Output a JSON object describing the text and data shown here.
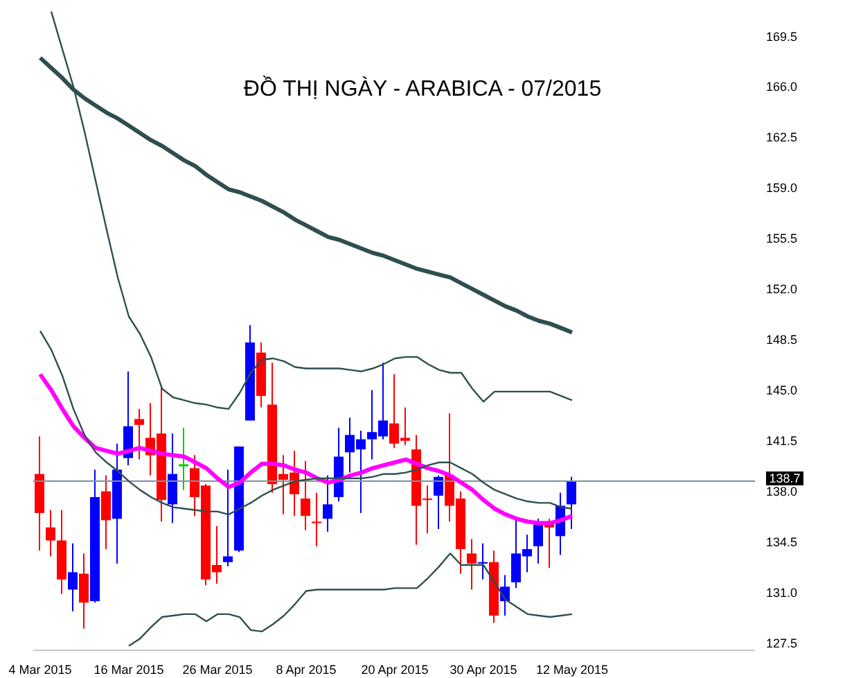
{
  "chart_data": {
    "type": "candlestick",
    "title": "ĐỒ THỊ NGÀY - ARABICA - 07/2015",
    "categories": [
      "4 Mar 2015",
      null,
      null,
      null,
      null,
      null,
      null,
      null,
      "16 Mar 2015",
      null,
      null,
      null,
      null,
      null,
      null,
      null,
      "26 Mar 2015",
      null,
      null,
      null,
      null,
      null,
      null,
      null,
      "8 Apr 2015",
      null,
      null,
      null,
      null,
      null,
      null,
      null,
      "20 Apr 2015",
      null,
      null,
      null,
      null,
      null,
      null,
      null,
      "30 Apr 2015",
      null,
      null,
      null,
      null,
      null,
      null,
      null,
      "12 May 2015"
    ],
    "ohlc": [
      [
        139.2,
        141.8,
        133.9,
        136.5
      ],
      [
        135.5,
        136.7,
        133.5,
        134.6
      ],
      [
        134.6,
        136.7,
        130.9,
        131.9
      ],
      [
        131.2,
        134.4,
        129.7,
        132.4
      ],
      [
        132.3,
        133.7,
        128.5,
        130.3
      ],
      [
        130.4,
        139.5,
        130.3,
        137.6
      ],
      [
        138.0,
        139.1,
        134.0,
        136.0
      ],
      [
        136.1,
        141.3,
        133.0,
        139.5
      ],
      [
        140.3,
        146.3,
        139.8,
        142.5
      ],
      [
        143.0,
        143.7,
        140.2,
        142.6
      ],
      [
        141.7,
        144.1,
        139.1,
        140.5
      ],
      [
        142.0,
        145.2,
        135.9,
        137.4
      ],
      [
        137.1,
        142.0,
        135.8,
        139.2
      ],
      [
        139.8,
        142.4,
        138.1,
        139.8
      ],
      [
        139.6,
        140.5,
        136.3,
        137.6
      ],
      [
        138.4,
        138.5,
        131.5,
        131.9
      ],
      [
        132.9,
        135.6,
        131.6,
        132.4
      ],
      [
        133.1,
        139.5,
        132.8,
        133.5
      ],
      [
        133.9,
        141.1,
        133.8,
        141.1
      ],
      [
        142.9,
        149.5,
        142.9,
        148.3
      ],
      [
        147.6,
        148.3,
        143.8,
        144.6
      ],
      [
        144.0,
        146.9,
        137.9,
        138.5
      ],
      [
        139.2,
        140.5,
        136.4,
        138.8
      ],
      [
        139.3,
        140.8,
        136.3,
        137.8
      ],
      [
        137.5,
        140.1,
        135.3,
        136.3
      ],
      [
        135.9,
        137.9,
        134.2,
        135.8
      ],
      [
        136.1,
        139.1,
        135.2,
        137.1
      ],
      [
        137.6,
        142.4,
        137.3,
        140.4
      ],
      [
        140.7,
        143.1,
        139.3,
        141.9
      ],
      [
        140.9,
        142.2,
        136.5,
        141.6
      ],
      [
        141.6,
        145.0,
        140.2,
        142.1
      ],
      [
        141.8,
        146.9,
        141.6,
        142.9
      ],
      [
        142.7,
        146.1,
        141.0,
        141.3
      ],
      [
        141.7,
        143.8,
        141.2,
        141.5
      ],
      [
        140.9,
        141.9,
        134.3,
        137.0
      ],
      [
        137.5,
        138.4,
        135.1,
        137.4
      ],
      [
        137.7,
        139.1,
        135.4,
        139.0
      ],
      [
        139.1,
        143.4,
        135.9,
        137.0
      ],
      [
        137.5,
        138.0,
        132.3,
        134.0
      ],
      [
        133.7,
        134.7,
        131.2,
        133.0
      ],
      [
        133.0,
        134.4,
        131.9,
        133.1
      ],
      [
        133.1,
        133.9,
        128.9,
        129.4
      ],
      [
        130.4,
        132.2,
        129.4,
        131.4
      ],
      [
        131.7,
        136.0,
        131.3,
        133.7
      ],
      [
        133.5,
        135.0,
        132.4,
        134.0
      ],
      [
        134.2,
        136.1,
        133.0,
        135.7
      ],
      [
        135.9,
        136.1,
        132.7,
        135.5
      ],
      [
        134.9,
        137.9,
        133.6,
        137.0
      ],
      [
        137.1,
        139.0,
        135.4,
        138.7
      ]
    ],
    "colors": [
      "#ff0000",
      "#ff0000",
      "#ff0000",
      "#0000ff",
      "#ff0000",
      "#0000ff",
      "#ff0000",
      "#0000ff",
      "#0000ff",
      "#ff0000",
      "#ff0000",
      "#ff0000",
      "#0000ff",
      "#00cc00",
      "#ff0000",
      "#ff0000",
      "#ff0000",
      "#0000ff",
      "#0000ff",
      "#0000ff",
      "#ff0000",
      "#ff0000",
      "#ff0000",
      "#ff0000",
      "#ff0000",
      "#ff0000",
      "#0000ff",
      "#0000ff",
      "#0000ff",
      "#0000ff",
      "#0000ff",
      "#0000ff",
      "#ff0000",
      "#ff0000",
      "#ff0000",
      "#ff0000",
      "#0000ff",
      "#ff0000",
      "#ff0000",
      "#ff0000",
      "#0000ff",
      "#ff0000",
      "#0000ff",
      "#0000ff",
      "#0000ff",
      "#0000ff",
      "#ff0000",
      "#0000ff",
      "#0000ff"
    ],
    "series": [
      {
        "type": "line",
        "color": "#ff00ff",
        "values": [
          146.1,
          145.0,
          143.7,
          142.5,
          141.7,
          141.0,
          140.8,
          140.6,
          140.8,
          141.0,
          140.8,
          140.6,
          140.5,
          140.4,
          140.0,
          139.6,
          138.9,
          138.3,
          138.6,
          139.3,
          139.9,
          139.9,
          139.8,
          139.5,
          139.3,
          138.9,
          138.6,
          138.8,
          139.1,
          139.3,
          139.6,
          139.8,
          140.0,
          140.2,
          139.9,
          139.6,
          139.4,
          139.1,
          138.6,
          138.1,
          137.4,
          136.8,
          136.4,
          136.1,
          135.9,
          135.8,
          135.8,
          136.0,
          136.3
        ]
      },
      {
        "type": "line",
        "color": "#2f4f4f",
        "values": [
          168.0,
          167.3,
          166.6,
          165.8,
          165.2,
          164.7,
          164.2,
          163.8,
          163.3,
          162.8,
          162.3,
          161.9,
          161.4,
          160.9,
          160.5,
          159.9,
          159.4,
          158.9,
          158.7,
          158.4,
          158.1,
          157.7,
          157.3,
          156.8,
          156.4,
          156.0,
          155.6,
          155.4,
          155.1,
          154.8,
          154.5,
          154.3,
          154.0,
          153.7,
          153.4,
          153.2,
          153.0,
          152.8,
          152.4,
          152.0,
          151.6,
          151.2,
          150.8,
          150.5,
          150.1,
          149.8,
          149.6,
          149.3,
          149.0
        ]
      },
      {
        "type": "line",
        "color": "#2f4f4f",
        "values": [
          null,
          171.2,
          168.6,
          166.0,
          162.9,
          159.5,
          156.1,
          152.8,
          150.1,
          148.9,
          147.3,
          145.1,
          144.5,
          144.3,
          144.1,
          144.0,
          143.8,
          143.7,
          144.8,
          146.2,
          147.1,
          147.2,
          147.0,
          146.6,
          146.5,
          146.5,
          146.5,
          146.5,
          146.4,
          146.3,
          146.5,
          146.8,
          147.2,
          147.3,
          147.3,
          146.8,
          146.4,
          146.2,
          146.2,
          145.1,
          144.2,
          144.9,
          144.9,
          144.9,
          144.9,
          144.9,
          144.9,
          144.6,
          144.3
        ]
      },
      {
        "type": "line",
        "color": "#2f4f4f",
        "values": [
          149.1,
          147.8,
          146.0,
          143.7,
          141.9,
          140.7,
          140.0,
          139.4,
          138.7,
          138.1,
          137.6,
          137.2,
          136.9,
          136.8,
          136.7,
          136.6,
          136.6,
          136.4,
          136.8,
          137.2,
          137.7,
          138.1,
          138.4,
          138.7,
          138.8,
          138.9,
          138.9,
          138.9,
          138.9,
          138.9,
          139.0,
          139.2,
          139.2,
          139.3,
          139.5,
          139.8,
          140.0,
          140.0,
          139.6,
          139.2,
          138.6,
          138.1,
          137.8,
          137.5,
          137.3,
          137.2,
          137.2,
          136.9,
          136.8
        ]
      },
      {
        "type": "line",
        "color": "#2f4f4f",
        "values": [
          null,
          null,
          null,
          null,
          null,
          null,
          null,
          null,
          127.3,
          127.8,
          128.6,
          129.3,
          129.4,
          129.5,
          129.5,
          129.0,
          129.5,
          129.5,
          129.3,
          128.4,
          128.3,
          128.8,
          129.4,
          130.2,
          131.1,
          131.2,
          131.2,
          131.2,
          131.2,
          131.2,
          131.2,
          131.2,
          131.3,
          131.3,
          131.3,
          132.0,
          132.8,
          133.7,
          132.9,
          132.9,
          132.9,
          131.7,
          130.5,
          130.0,
          129.5,
          129.4,
          129.3,
          129.4,
          129.5
        ]
      }
    ],
    "ylim": [
      127,
      172
    ],
    "yticks": [
      {
        "value": 127.5,
        "label": "127.5"
      },
      {
        "value": 131,
        "label": "131.0"
      },
      {
        "value": 134.5,
        "label": "134.5"
      },
      {
        "value": 138,
        "label": "138.0"
      },
      {
        "value": 141.5,
        "label": "141.5"
      },
      {
        "value": 145,
        "label": "145.0"
      },
      {
        "value": 148.5,
        "label": "148.5"
      },
      {
        "value": 152,
        "label": "152.0"
      },
      {
        "value": 155.5,
        "label": "155.5"
      },
      {
        "value": 159,
        "label": "159.0"
      },
      {
        "value": 162.5,
        "label": "162.5"
      },
      {
        "value": 166,
        "label": "166.0"
      },
      {
        "value": 169.5,
        "label": "169.5"
      }
    ],
    "ref_lines": [
      {
        "axis": "y",
        "value": 138.7,
        "label": "138.7",
        "color": "#8090a0"
      }
    ],
    "grid": false,
    "legend": false
  }
}
